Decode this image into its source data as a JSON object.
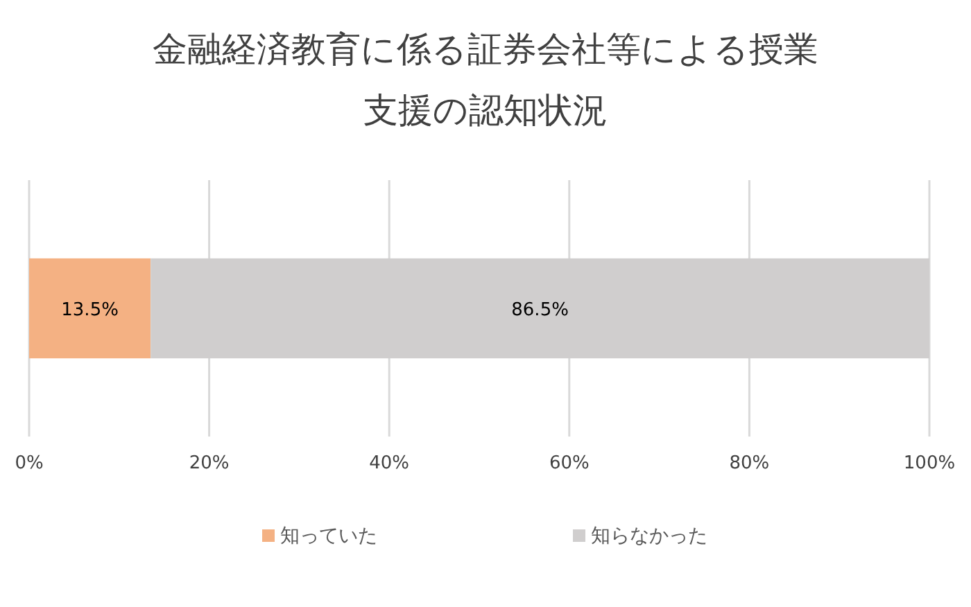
{
  "chart_data": {
    "type": "bar",
    "orientation": "horizontal",
    "stacked": true,
    "title": "金融経済教育に係る証券会社等による授業支援の認知状況",
    "categories": [
      null
    ],
    "series": [
      {
        "name": "知っていた",
        "color": "#f4b183",
        "values": [
          13.5
        ],
        "value_labels": [
          "13.5%"
        ]
      },
      {
        "name": "知らなかった",
        "color": "#d0cece",
        "values": [
          86.5
        ],
        "value_labels": [
          "86.5%"
        ]
      }
    ],
    "xlim": [
      0,
      100
    ],
    "xticks": [
      {
        "value": 0,
        "label": "0%"
      },
      {
        "value": 20,
        "label": "20%"
      },
      {
        "value": 40,
        "label": "40%"
      },
      {
        "value": 60,
        "label": "60%"
      },
      {
        "value": 80,
        "label": "80%"
      },
      {
        "value": 100,
        "label": "100%"
      }
    ],
    "grid": "x",
    "legend": "bottom"
  }
}
